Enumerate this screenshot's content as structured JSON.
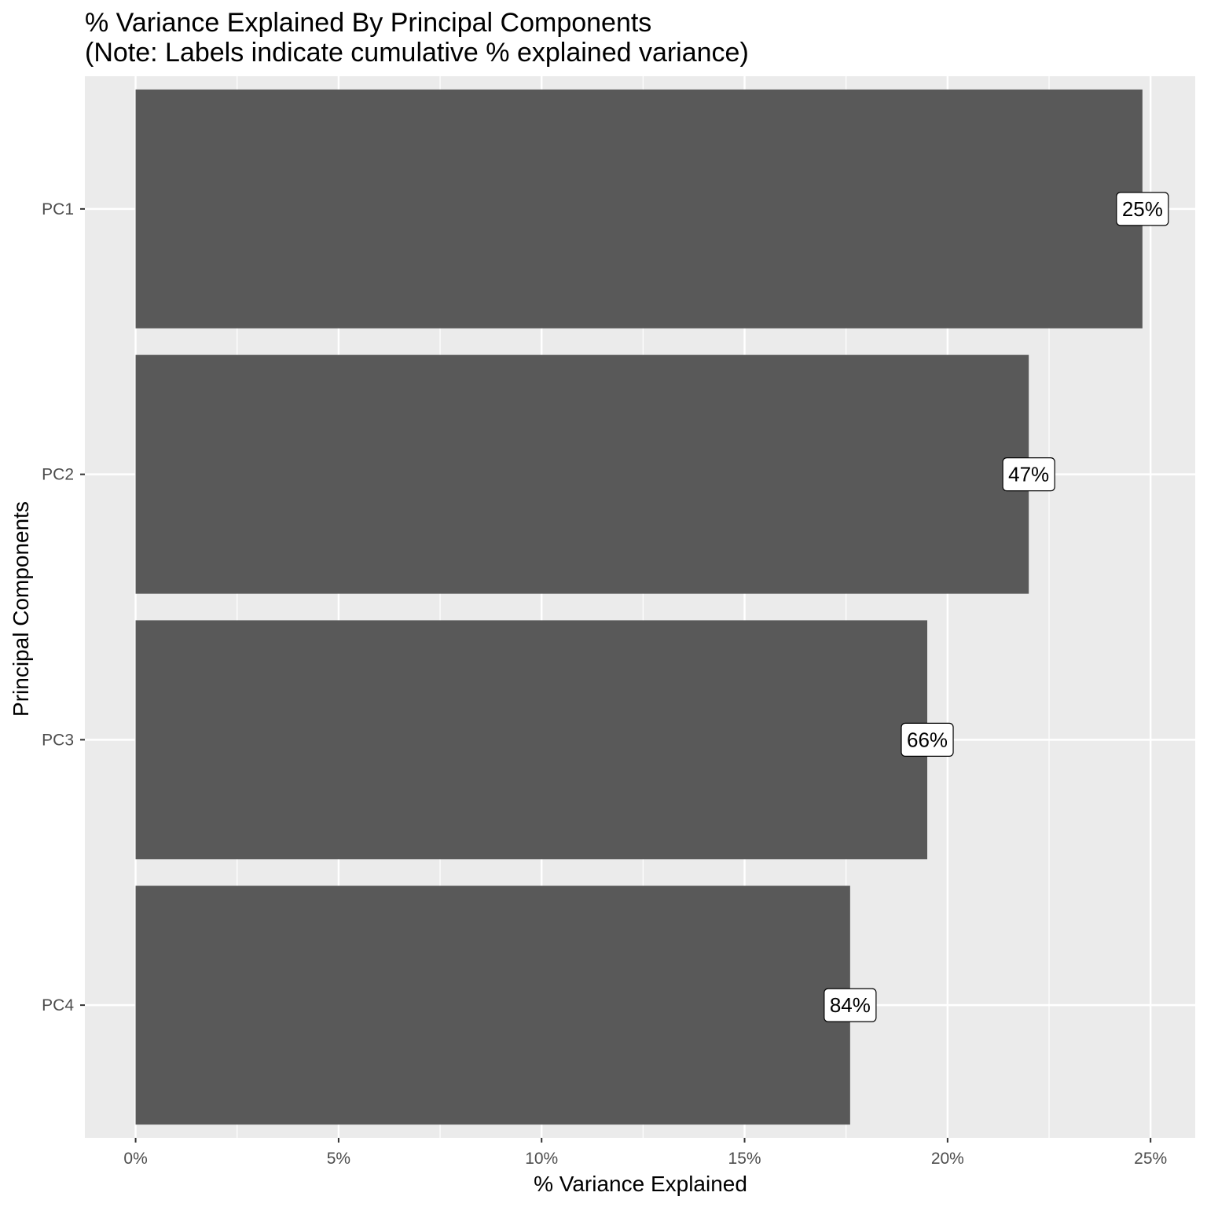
{
  "chart_data": {
    "type": "bar",
    "orientation": "horizontal",
    "title": "% Variance Explained By Principal Components",
    "subtitle": "(Note: Labels indicate cumulative % explained variance)",
    "xlabel": "% Variance Explained",
    "ylabel": "Principal Components",
    "categories": [
      "PC1",
      "PC2",
      "PC3",
      "PC4"
    ],
    "values": [
      24.8,
      22.0,
      19.5,
      17.6
    ],
    "data_labels": [
      "25%",
      "47%",
      "66%",
      "84%"
    ],
    "xlim": [
      -1.25,
      26.1
    ],
    "x_ticks": [
      0,
      5,
      10,
      15,
      20,
      25
    ],
    "x_tick_labels": [
      "0%",
      "5%",
      "10%",
      "15%",
      "20%",
      "25%"
    ],
    "grid": true,
    "legend": "none",
    "colors": {
      "panel_background": "#ebebeb",
      "grid_major": "#ffffff",
      "bar_fill": "#595959",
      "label_background": "#ffffff",
      "label_border": "#000000",
      "tick_text": "#4d4d4d"
    }
  }
}
